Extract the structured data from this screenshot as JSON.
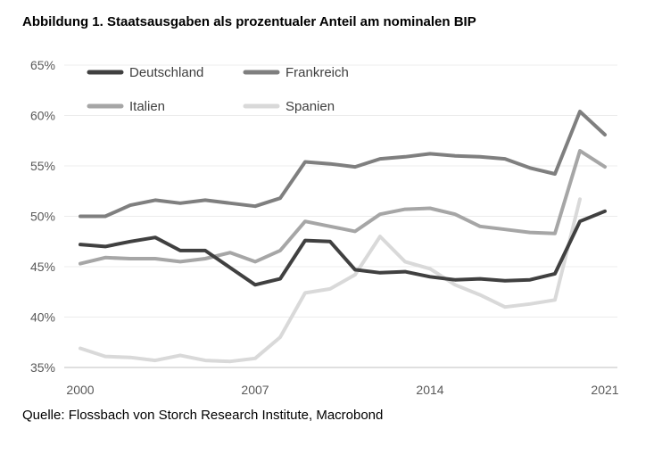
{
  "title": "Abbildung 1. Staatsausgaben als prozentualer Anteil am nominalen BIP",
  "source": "Quelle: Flossbach von Storch Research Institute, Macrobond",
  "chart_data": {
    "type": "line",
    "title": "Abbildung 1. Staatsausgaben als prozentualer Anteil am nominalen BIP",
    "xlabel": "",
    "ylabel": "",
    "x": [
      2000,
      2001,
      2002,
      2003,
      2004,
      2005,
      2006,
      2007,
      2008,
      2009,
      2010,
      2011,
      2012,
      2013,
      2014,
      2015,
      2016,
      2017,
      2018,
      2019,
      2020,
      2021
    ],
    "xlim": [
      2000,
      2021
    ],
    "ylim": [
      35,
      65
    ],
    "x_ticks": [
      2000,
      2007,
      2014,
      2021
    ],
    "x_tick_labels": [
      "2000",
      "2007",
      "2014",
      "2021"
    ],
    "y_ticks": [
      35,
      40,
      45,
      50,
      55,
      60,
      65
    ],
    "y_tick_labels": [
      "35%",
      "40%",
      "45%",
      "50%",
      "55%",
      "60%",
      "65%"
    ],
    "grid": true,
    "legend_position": "top-left",
    "series": [
      {
        "name": "Deutschland",
        "color": "#404040",
        "values": [
          47.2,
          47.0,
          47.5,
          47.9,
          46.6,
          46.6,
          44.9,
          43.2,
          43.8,
          47.6,
          47.5,
          44.7,
          44.4,
          44.5,
          44.0,
          43.7,
          43.8,
          43.6,
          43.7,
          44.3,
          49.5,
          50.5
        ]
      },
      {
        "name": "Frankreich",
        "color": "#7f7f7f",
        "values": [
          50.0,
          50.0,
          51.1,
          51.6,
          51.3,
          51.6,
          51.3,
          51.0,
          51.8,
          55.4,
          55.2,
          54.9,
          55.7,
          55.9,
          56.2,
          56.0,
          55.9,
          55.7,
          54.8,
          54.2,
          60.4,
          58.1
        ]
      },
      {
        "name": "Italien",
        "color": "#a6a6a6",
        "values": [
          45.3,
          45.9,
          45.8,
          45.8,
          45.5,
          45.8,
          46.4,
          45.5,
          46.6,
          49.5,
          49.0,
          48.5,
          50.2,
          50.7,
          50.8,
          50.2,
          49.0,
          48.7,
          48.4,
          48.3,
          56.5,
          54.9
        ]
      },
      {
        "name": "Spanien",
        "color": "#d9d9d9",
        "values": [
          36.9,
          36.1,
          36.0,
          35.7,
          36.2,
          35.7,
          35.6,
          35.9,
          38.0,
          42.4,
          42.8,
          44.2,
          48.0,
          45.5,
          44.8,
          43.2,
          42.2,
          41.0,
          41.3,
          41.7,
          51.7,
          null
        ]
      }
    ]
  }
}
